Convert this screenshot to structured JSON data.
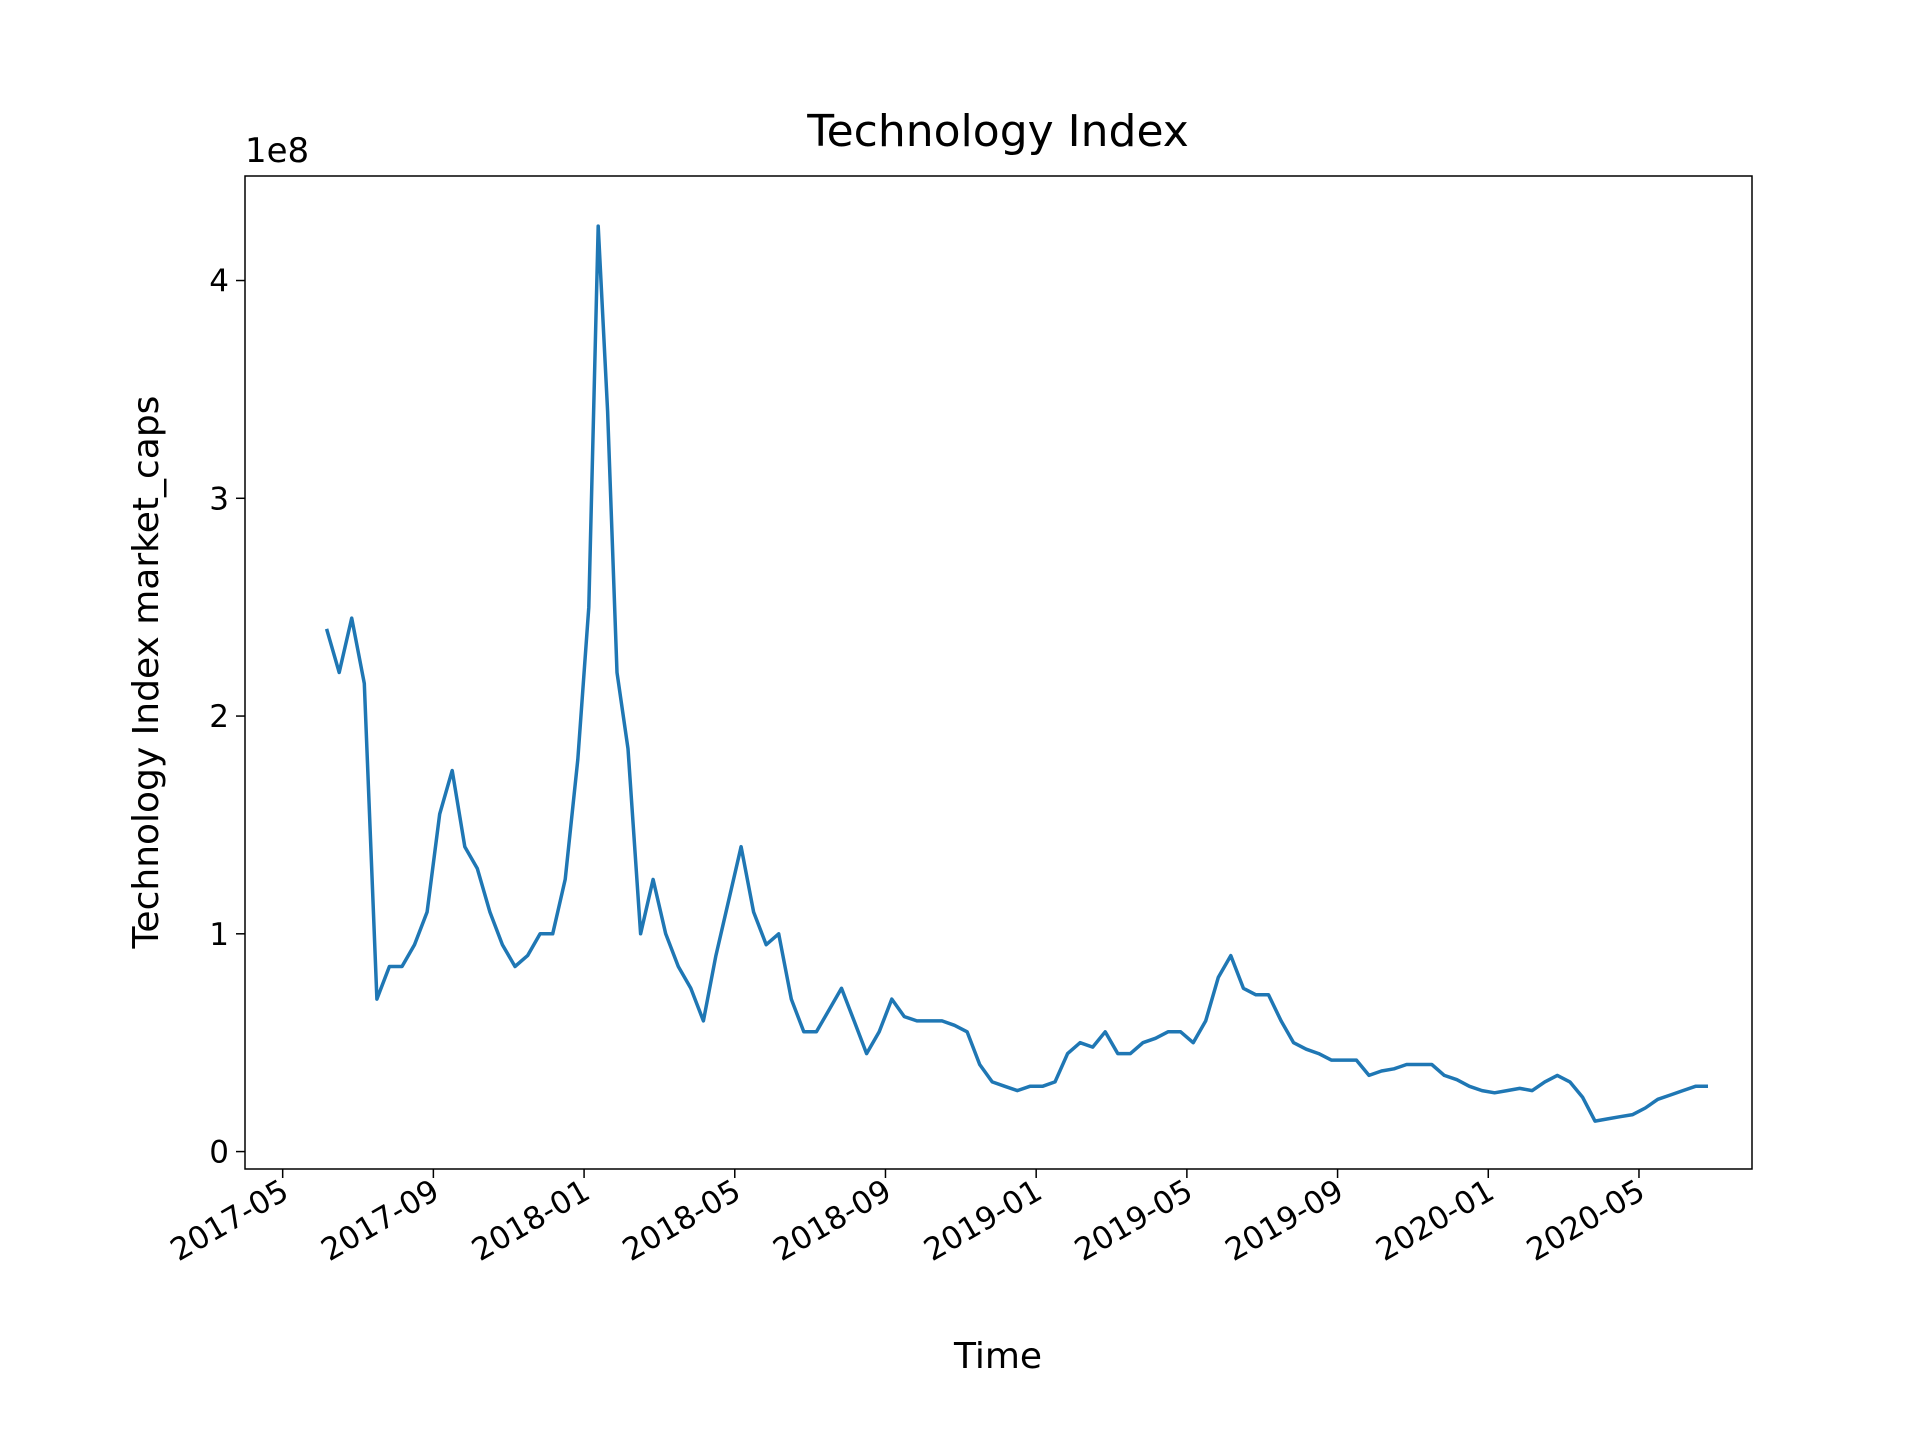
{
  "chart_data": {
    "type": "line",
    "title": "Technology Index",
    "xlabel": "Time",
    "ylabel": "Technology Index market_caps",
    "y_offset_label": "1e8",
    "x": [
      "2017-06",
      "2017-06",
      "2017-06",
      "2017-07",
      "2017-07",
      "2017-07",
      "2017-08",
      "2017-08",
      "2017-08",
      "2017-09",
      "2017-09",
      "2017-09",
      "2017-10",
      "2017-10",
      "2017-10",
      "2017-11",
      "2017-11",
      "2017-11",
      "2017-12",
      "2017-12",
      "2017-12",
      "2018-01",
      "2018-01",
      "2018-01",
      "2018-01",
      "2018-02",
      "2018-02",
      "2018-02",
      "2018-03",
      "2018-03",
      "2018-03",
      "2018-04",
      "2018-04",
      "2018-04",
      "2018-05",
      "2018-05",
      "2018-05",
      "2018-06",
      "2018-06",
      "2018-06",
      "2018-07",
      "2018-07",
      "2018-07",
      "2018-08",
      "2018-08",
      "2018-08",
      "2018-09",
      "2018-09",
      "2018-09",
      "2018-10",
      "2018-10",
      "2018-10",
      "2018-11",
      "2018-11",
      "2018-11",
      "2018-12",
      "2018-12",
      "2018-12",
      "2019-01",
      "2019-01",
      "2019-01",
      "2019-02",
      "2019-02",
      "2019-02",
      "2019-03",
      "2019-03",
      "2019-03",
      "2019-04",
      "2019-04",
      "2019-04",
      "2019-05",
      "2019-05",
      "2019-05",
      "2019-06",
      "2019-06",
      "2019-06",
      "2019-07",
      "2019-07",
      "2019-07",
      "2019-08",
      "2019-08",
      "2019-08",
      "2019-09",
      "2019-09",
      "2019-09",
      "2019-10",
      "2019-10",
      "2019-10",
      "2019-11",
      "2019-11",
      "2019-11",
      "2019-12",
      "2019-12",
      "2019-12",
      "2020-01",
      "2020-01",
      "2020-01",
      "2020-02",
      "2020-02",
      "2020-02",
      "2020-03",
      "2020-03",
      "2020-03",
      "2020-04",
      "2020-04",
      "2020-04",
      "2020-05",
      "2020-05",
      "2020-05",
      "2020-06",
      "2020-06",
      "2020-06"
    ],
    "series": [
      {
        "name": "Technology Index",
        "color": "#1f77b4",
        "values": [
          2.4,
          2.2,
          2.45,
          2.15,
          0.7,
          0.85,
          0.85,
          0.95,
          1.1,
          1.55,
          1.75,
          1.4,
          1.3,
          1.1,
          0.95,
          0.85,
          0.9,
          1.0,
          1.0,
          1.25,
          1.8,
          2.5,
          4.25,
          3.4,
          2.2,
          1.85,
          1.0,
          1.25,
          1.0,
          0.85,
          0.75,
          0.6,
          0.9,
          1.15,
          1.4,
          1.1,
          0.95,
          1.0,
          0.7,
          0.55,
          0.55,
          0.65,
          0.75,
          0.6,
          0.45,
          0.55,
          0.7,
          0.62,
          0.6,
          0.6,
          0.6,
          0.58,
          0.55,
          0.4,
          0.32,
          0.3,
          0.28,
          0.3,
          0.3,
          0.32,
          0.45,
          0.5,
          0.48,
          0.55,
          0.45,
          0.45,
          0.5,
          0.52,
          0.55,
          0.55,
          0.5,
          0.6,
          0.8,
          0.9,
          0.75,
          0.72,
          0.72,
          0.6,
          0.5,
          0.47,
          0.45,
          0.42,
          0.42,
          0.42,
          0.35,
          0.37,
          0.38,
          0.4,
          0.4,
          0.4,
          0.35,
          0.33,
          0.3,
          0.28,
          0.27,
          0.28,
          0.29,
          0.28,
          0.32,
          0.35,
          0.32,
          0.25,
          0.14,
          0.15,
          0.16,
          0.17,
          0.2,
          0.24,
          0.26,
          0.28,
          0.3,
          0.3
        ]
      }
    ],
    "xlim": [
      "2017-04",
      "2020-08"
    ],
    "xticks": [
      "2017-05",
      "2017-09",
      "2018-01",
      "2018-05",
      "2018-09",
      "2019-01",
      "2019-05",
      "2019-09",
      "2020-01",
      "2020-05"
    ],
    "ylim": [
      -0.08,
      4.48
    ],
    "yticks": [
      0,
      1,
      2,
      3,
      4
    ],
    "grid": false
  }
}
